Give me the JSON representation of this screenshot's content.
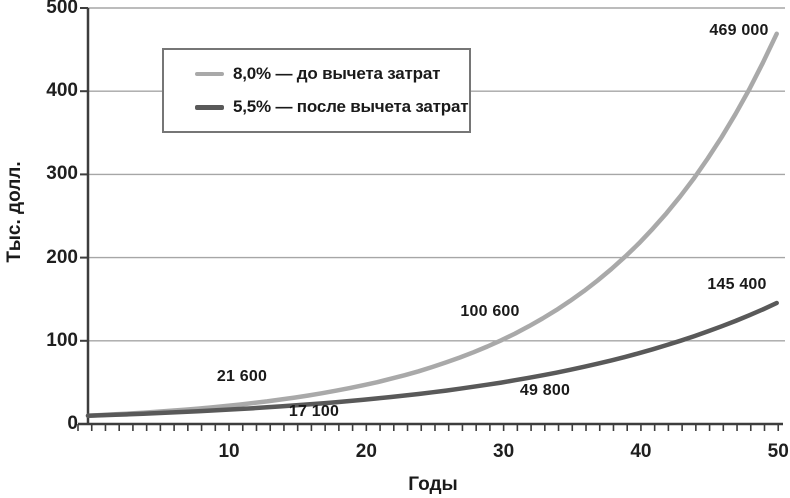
{
  "chart_data": {
    "type": "line",
    "title": "",
    "xlabel": "Годы",
    "ylabel": "Тыс. долл.",
    "xlim": [
      0,
      50
    ],
    "ylim": [
      0,
      500
    ],
    "x_tick_labels": [
      "10",
      "20",
      "30",
      "40",
      "50"
    ],
    "x_tick_values": [
      10,
      20,
      30,
      40,
      50
    ],
    "y_tick_labels": [
      "0",
      "100",
      "200",
      "300",
      "400",
      "500"
    ],
    "y_tick_values": [
      0,
      100,
      200,
      300,
      400,
      500
    ],
    "grid": "horizontal",
    "legend_position": "top-left-inside",
    "x": [
      0,
      1,
      2,
      3,
      4,
      5,
      6,
      7,
      8,
      9,
      10,
      11,
      12,
      13,
      14,
      15,
      16,
      17,
      18,
      19,
      20,
      21,
      22,
      23,
      24,
      25,
      26,
      27,
      28,
      29,
      30,
      31,
      32,
      33,
      34,
      35,
      36,
      37,
      38,
      39,
      40,
      41,
      42,
      43,
      44,
      45,
      46,
      47,
      48,
      49,
      50
    ],
    "series": [
      {
        "name": "8,0% — до вычета затрат",
        "rate": "8,0%",
        "color": "#a9a9a9",
        "values": [
          10,
          10.8,
          11.7,
          12.6,
          13.6,
          14.7,
          15.9,
          17.1,
          18.5,
          20,
          21.6,
          23.3,
          25.2,
          27.2,
          29.4,
          31.7,
          34.3,
          37,
          40,
          43.2,
          46.6,
          50.3,
          54.4,
          58.7,
          63.4,
          68.5,
          74,
          79.9,
          86.3,
          93.2,
          100.6,
          108.7,
          117.4,
          126.8,
          136.9,
          147.9,
          159.7,
          172.5,
          186.3,
          201.2,
          217.2,
          234.6,
          253.4,
          273.7,
          295.6,
          319.2,
          344.7,
          372.3,
          402.1,
          434.3,
          469
        ]
      },
      {
        "name": "5,5% — после вычета затрат",
        "rate": "5,5%",
        "color": "#595959",
        "values": [
          10,
          10.6,
          11.1,
          11.7,
          12.4,
          13.1,
          13.8,
          14.5,
          15.3,
          16.2,
          17.1,
          18,
          19,
          20.1,
          21.2,
          22.3,
          23.6,
          24.8,
          26.2,
          27.7,
          29.2,
          30.8,
          32.5,
          34.3,
          36.1,
          38.1,
          40.2,
          42.4,
          44.8,
          47.2,
          49.8,
          52.6,
          55.5,
          58.5,
          61.7,
          65.1,
          68.7,
          72.5,
          76.5,
          80.7,
          85.1,
          89.8,
          94.8,
          100,
          105.5,
          111.3,
          117.4,
          123.8,
          130.7,
          137.8,
          145.4
        ]
      }
    ],
    "annotations": [
      {
        "text": "469 000",
        "series": 0,
        "year": 50
      },
      {
        "text": "100 600",
        "series": 0,
        "year": 30
      },
      {
        "text": "21 600",
        "series": 0,
        "year": 10
      },
      {
        "text": "145 400",
        "series": 1,
        "year": 50
      },
      {
        "text": "49 800",
        "series": 1,
        "year": 30
      },
      {
        "text": "17 100",
        "series": 1,
        "year": 10
      }
    ]
  },
  "legend": {
    "items": [
      {
        "label": "8,0% — до вычета затрат",
        "color": "#a9a9a9"
      },
      {
        "label": "5,5% — после вычета затрат",
        "color": "#595959"
      }
    ]
  },
  "colors": {
    "grid": "#a6a6a6",
    "axis": "#3d3d3d",
    "text": "#1a1a1a",
    "light_line": "#a9a9a9",
    "dark_line": "#595959"
  }
}
